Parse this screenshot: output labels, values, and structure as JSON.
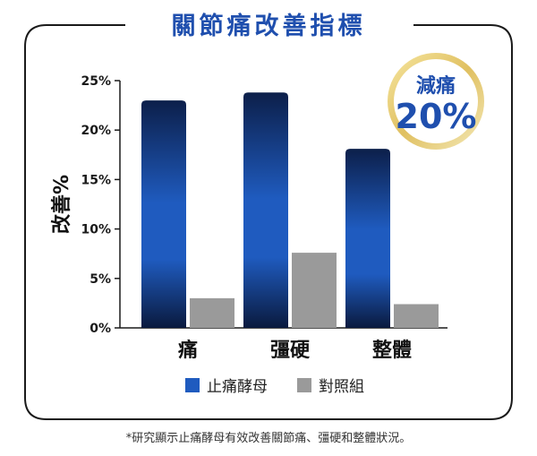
{
  "chart_data": {
    "type": "bar",
    "title": "關節痛改善指標",
    "ylabel": "改善%",
    "xlabel": "",
    "ylim": [
      0,
      25
    ],
    "yticks": [
      "0%",
      "5%",
      "10%",
      "15%",
      "20%",
      "25%"
    ],
    "categories": [
      "痛",
      "彊硬",
      "整體"
    ],
    "series": [
      {
        "name": "止痛酵母",
        "values": [
          23,
          23.8,
          18.1
        ],
        "color": "#1f5bbf"
      },
      {
        "name": "對照組",
        "values": [
          3,
          7.6,
          2.4
        ],
        "color": "#9a9a9a"
      }
    ],
    "legend_position": "bottom",
    "grid": false,
    "annotation": {
      "line1": "減痛",
      "line2": "20%"
    }
  },
  "footnote": "*研究顯示止痛酵母有效改善關節痛、彊硬和整體狀況。"
}
